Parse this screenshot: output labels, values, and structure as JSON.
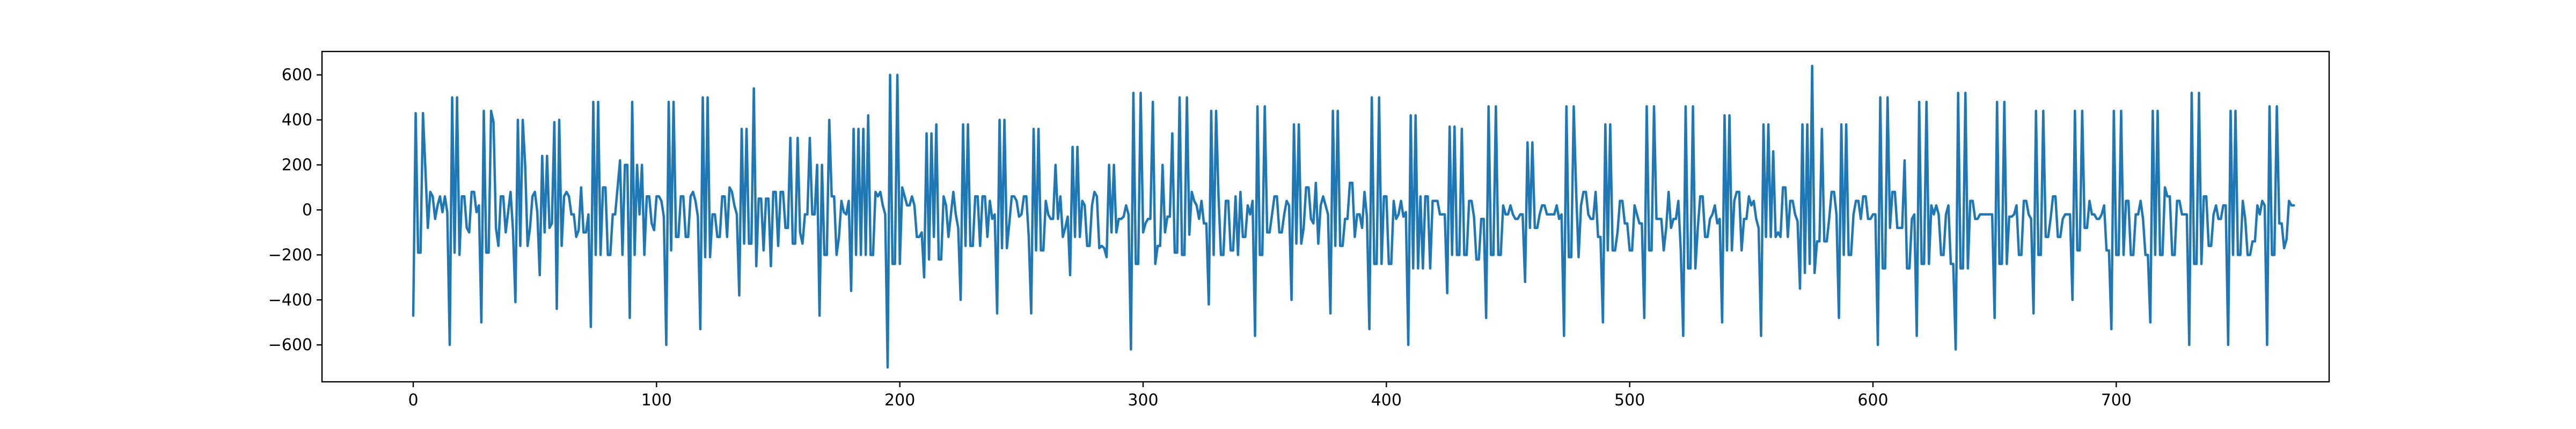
{
  "chart_data": {
    "type": "line",
    "title": "",
    "xlabel": "",
    "ylabel": "",
    "xlim": [
      -37.5,
      787.5
    ],
    "ylim": [
      -764,
      704
    ],
    "x_ticks": [
      0,
      100,
      200,
      300,
      400,
      500,
      600,
      700
    ],
    "y_ticks": [
      -600,
      -400,
      -200,
      0,
      200,
      400,
      600
    ],
    "grid": false,
    "legend": "none",
    "line_color": "#1f77b4",
    "series": [
      {
        "values": [
          -470,
          430,
          -190,
          -190,
          430,
          180,
          -80,
          80,
          60,
          -40,
          20,
          60,
          -10,
          60,
          -10,
          -600,
          500,
          -190,
          500,
          -200,
          60,
          60,
          -80,
          -100,
          80,
          80,
          -10,
          20,
          -500,
          440,
          -190,
          -190,
          440,
          390,
          -80,
          -160,
          60,
          60,
          -100,
          -10,
          80,
          -90,
          -410,
          400,
          -160,
          400,
          200,
          -160,
          -80,
          60,
          80,
          -10,
          -290,
          240,
          -100,
          240,
          -80,
          -60,
          390,
          -440,
          400,
          -160,
          60,
          80,
          60,
          -20,
          -20,
          -120,
          -90,
          100,
          -100,
          -100,
          -20,
          -520,
          480,
          -200,
          480,
          -200,
          100,
          100,
          -200,
          -200,
          -20,
          -20,
          100,
          220,
          -200,
          200,
          200,
          -480,
          480,
          -200,
          200,
          -20,
          200,
          -200,
          60,
          60,
          -60,
          -90,
          60,
          60,
          40,
          -30,
          -600,
          480,
          -180,
          480,
          -120,
          -120,
          60,
          60,
          -120,
          -120,
          60,
          80,
          40,
          -30,
          -530,
          500,
          -210,
          500,
          -210,
          -20,
          -20,
          -120,
          -120,
          60,
          60,
          -120,
          100,
          80,
          20,
          -20,
          -380,
          360,
          -150,
          360,
          -150,
          -150,
          540,
          -250,
          50,
          50,
          -180,
          50,
          50,
          -250,
          80,
          80,
          -160,
          80,
          80,
          -80,
          -80,
          320,
          -150,
          -150,
          320,
          -100,
          -150,
          -20,
          -20,
          320,
          -20,
          -20,
          200,
          -470,
          200,
          -200,
          -200,
          400,
          60,
          60,
          -200,
          -120,
          40,
          -10,
          -20,
          40,
          -360,
          360,
          -200,
          360,
          -200,
          360,
          -200,
          420,
          -200,
          -200,
          80,
          60,
          80,
          20,
          -20,
          -700,
          600,
          -240,
          -240,
          600,
          -240,
          100,
          60,
          20,
          20,
          60,
          20,
          -120,
          -120,
          -100,
          -300,
          340,
          -220,
          340,
          -120,
          380,
          -220,
          -220,
          60,
          20,
          -120,
          -20,
          80,
          -20,
          -80,
          -400,
          380,
          -160,
          380,
          -160,
          -160,
          60,
          60,
          -160,
          60,
          60,
          -120,
          40,
          -40,
          -20,
          -460,
          400,
          -170,
          400,
          -170,
          -60,
          60,
          60,
          40,
          -30,
          -20,
          60,
          60,
          -120,
          -460,
          360,
          -180,
          360,
          -180,
          -180,
          40,
          -20,
          -40,
          -40,
          200,
          -40,
          60,
          -120,
          -80,
          -30,
          -290,
          280,
          -120,
          280,
          -120,
          40,
          20,
          -160,
          -160,
          20,
          80,
          60,
          -170,
          -160,
          -170,
          -210,
          200,
          -100,
          200,
          -100,
          -40,
          -40,
          -30,
          20,
          -20,
          -620,
          520,
          -240,
          -240,
          520,
          -100,
          -60,
          -40,
          -40,
          480,
          -240,
          -160,
          -160,
          200,
          -100,
          -30,
          -30,
          340,
          -190,
          -190,
          500,
          -200,
          -200,
          500,
          -110,
          80,
          40,
          20,
          -40,
          40,
          -60,
          -60,
          -420,
          440,
          -200,
          440,
          60,
          -200,
          -200,
          40,
          40,
          -180,
          -180,
          60,
          -200,
          80,
          -120,
          -120,
          20,
          -20,
          40,
          -560,
          460,
          -200,
          -200,
          460,
          -100,
          -100,
          -20,
          60,
          60,
          -100,
          -100,
          -20,
          40,
          20,
          -400,
          380,
          -150,
          380,
          -150,
          -80,
          100,
          100,
          -40,
          -60,
          120,
          -150,
          20,
          60,
          20,
          -20,
          -460,
          440,
          -160,
          440,
          -160,
          -160,
          -40,
          -40,
          120,
          120,
          -120,
          -20,
          -20,
          -80,
          80,
          -30,
          -530,
          500,
          -240,
          -240,
          500,
          -240,
          60,
          60,
          -240,
          -240,
          40,
          -40,
          -20,
          40,
          -30,
          -10,
          -600,
          420,
          -260,
          420,
          -260,
          60,
          -260,
          60,
          60,
          -260,
          40,
          40,
          40,
          -20,
          -20,
          -20,
          -370,
          370,
          -200,
          370,
          -200,
          -200,
          360,
          -200,
          -200,
          40,
          40,
          -30,
          -220,
          -220,
          -40,
          -40,
          -480,
          460,
          -200,
          -200,
          460,
          -200,
          -200,
          20,
          -20,
          -20,
          20,
          -20,
          -40,
          -40,
          -20,
          -20,
          -320,
          300,
          -80,
          300,
          -80,
          -80,
          -20,
          20,
          20,
          -20,
          -20,
          -20,
          -20,
          20,
          -40,
          -20,
          -560,
          460,
          -210,
          -210,
          460,
          80,
          -210,
          20,
          80,
          80,
          -20,
          -40,
          -40,
          80,
          -120,
          -120,
          -500,
          380,
          -180,
          380,
          -180,
          -180,
          -100,
          40,
          40,
          -60,
          -60,
          -180,
          -180,
          20,
          -20,
          -60,
          -60,
          -480,
          460,
          -180,
          -180,
          460,
          -40,
          -40,
          -40,
          -180,
          -80,
          80,
          -80,
          -40,
          -40,
          40,
          -180,
          -560,
          460,
          -260,
          -260,
          460,
          -260,
          -80,
          60,
          60,
          -120,
          -120,
          -40,
          -20,
          20,
          -60,
          -40,
          -500,
          420,
          -180,
          420,
          -180,
          40,
          80,
          80,
          -180,
          -40,
          -40,
          60,
          20,
          40,
          -40,
          -80,
          -560,
          380,
          -120,
          380,
          -120,
          260,
          -120,
          -100,
          -120,
          100,
          100,
          -120,
          40,
          40,
          -20,
          -50,
          -350,
          380,
          -280,
          380,
          -240,
          640,
          -280,
          -140,
          -140,
          360,
          -140,
          -140,
          -40,
          80,
          80,
          -20,
          -480,
          380,
          -200,
          380,
          -200,
          -200,
          -20,
          40,
          40,
          -40,
          60,
          60,
          -40,
          -40,
          -20,
          -20,
          -600,
          500,
          -260,
          -260,
          500,
          -80,
          80,
          80,
          -80,
          -80,
          -80,
          220,
          -260,
          -260,
          -40,
          -20,
          -560,
          480,
          -240,
          -240,
          480,
          -240,
          20,
          -20,
          20,
          -20,
          -200,
          -200,
          -20,
          20,
          -240,
          -240,
          -620,
          520,
          -260,
          -260,
          520,
          -260,
          40,
          40,
          -40,
          -40,
          -20,
          -20,
          -20,
          -20,
          -20,
          -20,
          -480,
          480,
          -240,
          -240,
          480,
          -240,
          -30,
          -30,
          -20,
          20,
          -200,
          -200,
          40,
          40,
          -20,
          -40,
          -460,
          440,
          -200,
          -200,
          440,
          -120,
          -120,
          -40,
          60,
          60,
          -120,
          -120,
          -40,
          -20,
          -20,
          -20,
          -400,
          440,
          -180,
          -180,
          440,
          -80,
          -80,
          40,
          -20,
          -20,
          -40,
          -40,
          -20,
          20,
          -180,
          -180,
          -530,
          440,
          -200,
          -200,
          440,
          -200,
          40,
          40,
          -200,
          -200,
          -20,
          -20,
          40,
          -40,
          -200,
          -200,
          -500,
          440,
          -200,
          440,
          -200,
          -200,
          100,
          60,
          60,
          -200,
          -200,
          40,
          40,
          -20,
          -20,
          -20,
          -600,
          520,
          -240,
          -240,
          520,
          -240,
          60,
          60,
          -160,
          -160,
          -20,
          20,
          -40,
          -40,
          20,
          20,
          -600,
          440,
          -200,
          440,
          -200,
          -200,
          40,
          -40,
          -200,
          -200,
          -140,
          -140,
          20,
          -20,
          40,
          20,
          -600,
          460,
          -200,
          -200,
          460,
          -60,
          -60,
          -170,
          -130,
          40,
          20,
          20
        ]
      }
    ]
  }
}
